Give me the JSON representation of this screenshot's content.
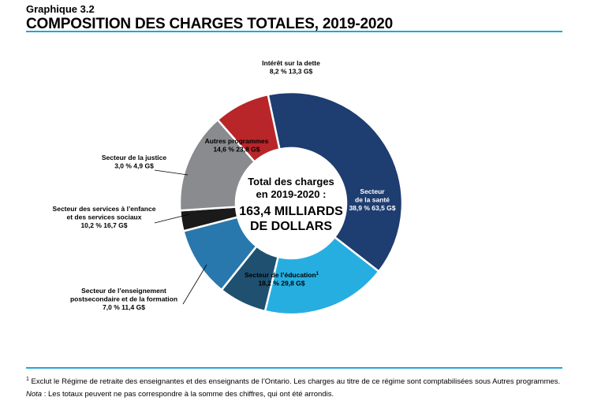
{
  "header": {
    "label": "Graphique 3.2",
    "title": "COMPOSITION DES CHARGES TOTALES, 2019-2020"
  },
  "chart_data": {
    "type": "pie",
    "title": "COMPOSITION DES CHARGES TOTALES, 2019-2020",
    "center": {
      "line1": "Total des charges",
      "line2": "en 2019-2020 :",
      "line3": "163,4 MILLIARDS",
      "line4": "DE DOLLARS"
    },
    "total_billion": 163.4,
    "unit": "G$",
    "slices": [
      {
        "key": "sante",
        "name_lines": [
          "Secteur",
          "de la santé"
        ],
        "name_sup": "",
        "percent": 38.9,
        "percent_text": "38,9 %",
        "value": 63.5,
        "value_text": "63,5 G$",
        "color": "#1e3d70",
        "label_color": "#ffffff"
      },
      {
        "key": "education",
        "name_lines": [
          "Secteur de l’éducation"
        ],
        "name_sup": "1",
        "percent": 18.2,
        "percent_text": "18,2 %",
        "value": 29.8,
        "value_text": "29,8 G$",
        "color": "#27aee0",
        "label_color": "#000000"
      },
      {
        "key": "postsecondaire",
        "name_lines": [
          "Secteur de l’enseignement",
          "postsecondaire et de la formation"
        ],
        "name_sup": "",
        "percent": 7.0,
        "percent_text": "7,0 %",
        "value": 11.4,
        "value_text": "11,4 G$",
        "color": "#1f5070",
        "label_color": "#000000"
      },
      {
        "key": "services-sociaux",
        "name_lines": [
          "Secteur des services à l’enfance",
          "et des services sociaux"
        ],
        "name_sup": "",
        "percent": 10.2,
        "percent_text": "10,2 %",
        "value": 16.7,
        "value_text": "16,7 G$",
        "color": "#2878ae",
        "label_color": "#000000"
      },
      {
        "key": "justice",
        "name_lines": [
          "Secteur de la justice"
        ],
        "name_sup": "",
        "percent": 3.0,
        "percent_text": "3,0 %",
        "value": 4.9,
        "value_text": "4,9 G$",
        "color": "#1a1a1a",
        "label_color": "#000000"
      },
      {
        "key": "autres",
        "name_lines": [
          "Autres programmes"
        ],
        "name_sup": "",
        "percent": 14.6,
        "percent_text": "14,6 %",
        "value": 23.8,
        "value_text": "23,8 G$",
        "color": "#8a8b8e",
        "label_color": "#000000"
      },
      {
        "key": "interet",
        "name_lines": [
          "Intérêt sur la dette"
        ],
        "name_sup": "",
        "percent": 8.2,
        "percent_text": "8,2 %",
        "value": 13.3,
        "value_text": "13,3 G$",
        "color": "#b8262a",
        "label_color": "#000000"
      }
    ]
  },
  "footnotes": {
    "note1_marker": "1",
    "note1_text": " Exclut le Régime de retraite des enseignantes et des enseignants de l’Ontario. Les charges au titre de ce régime sont comptabilisées sous Autres programmes.",
    "note2_label": "Nota",
    "note2_text": " : Les totaux peuvent ne pas correspondre à la somme des chiffres, qui ont été arrondis."
  }
}
